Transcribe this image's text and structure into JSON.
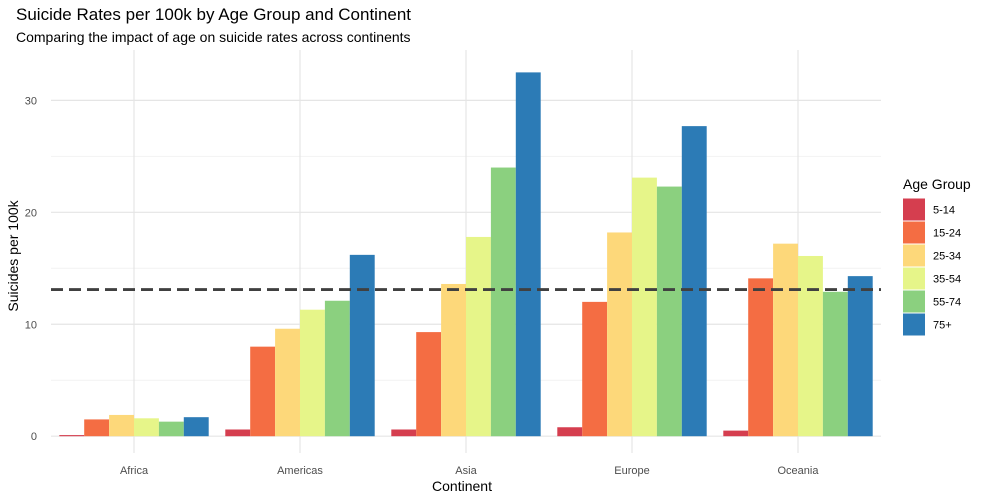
{
  "chart_data": {
    "type": "bar",
    "title": "Suicide Rates per 100k by Age Group and Continent",
    "subtitle": "Comparing the impact of age on suicide rates across continents",
    "xlabel": "Continent",
    "ylabel": "Suicides per 100k",
    "categories": [
      "Africa",
      "Americas",
      "Asia",
      "Europe",
      "Oceania"
    ],
    "ylim": [
      -1.5,
      34.5
    ],
    "yticks": [
      0,
      10,
      20,
      30
    ],
    "grid": true,
    "legend": {
      "title": "Age Group",
      "placement": "right"
    },
    "reference_line": {
      "value": 13.1,
      "style": "dashed",
      "color": "#404040"
    },
    "series": [
      {
        "name": "5-14",
        "color": "#D53E4F",
        "values": [
          0.1,
          0.6,
          0.6,
          0.8,
          0.5
        ]
      },
      {
        "name": "15-24",
        "color": "#F46D43",
        "values": [
          1.5,
          8.0,
          9.3,
          12.0,
          14.1
        ]
      },
      {
        "name": "25-34",
        "color": "#FDD87A",
        "values": [
          1.9,
          9.6,
          13.6,
          18.2,
          17.2
        ]
      },
      {
        "name": "35-54",
        "color": "#E6F589",
        "values": [
          1.6,
          11.3,
          17.8,
          23.1,
          16.1
        ]
      },
      {
        "name": "55-74",
        "color": "#8BD07F",
        "values": [
          1.3,
          12.1,
          24.0,
          22.3,
          12.9
        ]
      },
      {
        "name": "75+",
        "color": "#2C7BB6",
        "values": [
          1.7,
          16.2,
          32.5,
          27.7,
          14.3
        ]
      }
    ]
  }
}
